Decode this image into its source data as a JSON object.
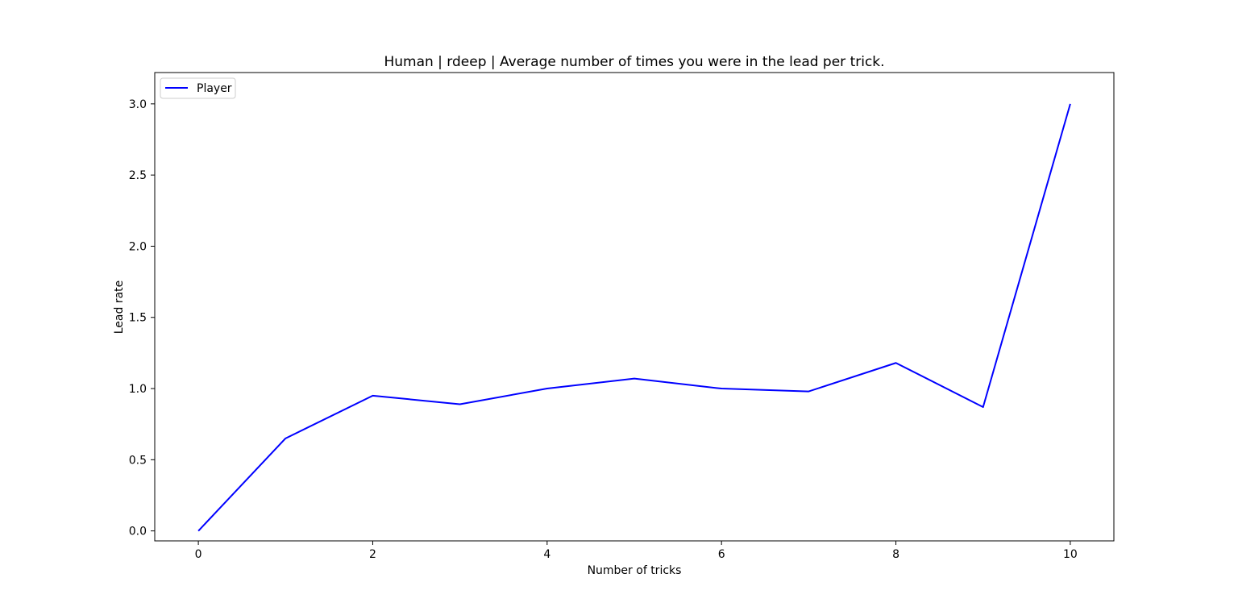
{
  "chart_data": {
    "type": "line",
    "title": "Human | rdeep | Average number of times you were in the lead per trick.",
    "xlabel": "Number of tricks",
    "ylabel": "Lead rate",
    "x": [
      0,
      1,
      2,
      3,
      4,
      5,
      6,
      7,
      8,
      9,
      10
    ],
    "series": [
      {
        "name": "Player",
        "color": "#0000ff",
        "values": [
          0.0,
          0.65,
          0.95,
          0.89,
          1.0,
          1.07,
          1.0,
          0.98,
          1.18,
          0.87,
          3.0
        ]
      }
    ],
    "xlim": [
      -0.5,
      10.5
    ],
    "ylim": [
      -0.07,
      3.22
    ],
    "xticks": [
      0,
      2,
      4,
      6,
      8,
      10
    ],
    "xtick_labels": [
      "0",
      "2",
      "4",
      "6",
      "8",
      "10"
    ],
    "yticks": [
      0.0,
      0.5,
      1.0,
      1.5,
      2.0,
      2.5,
      3.0
    ],
    "ytick_labels": [
      "0.0",
      "0.5",
      "1.0",
      "1.5",
      "2.0",
      "2.5",
      "3.0"
    ],
    "grid": false,
    "legend_position": "upper left"
  }
}
